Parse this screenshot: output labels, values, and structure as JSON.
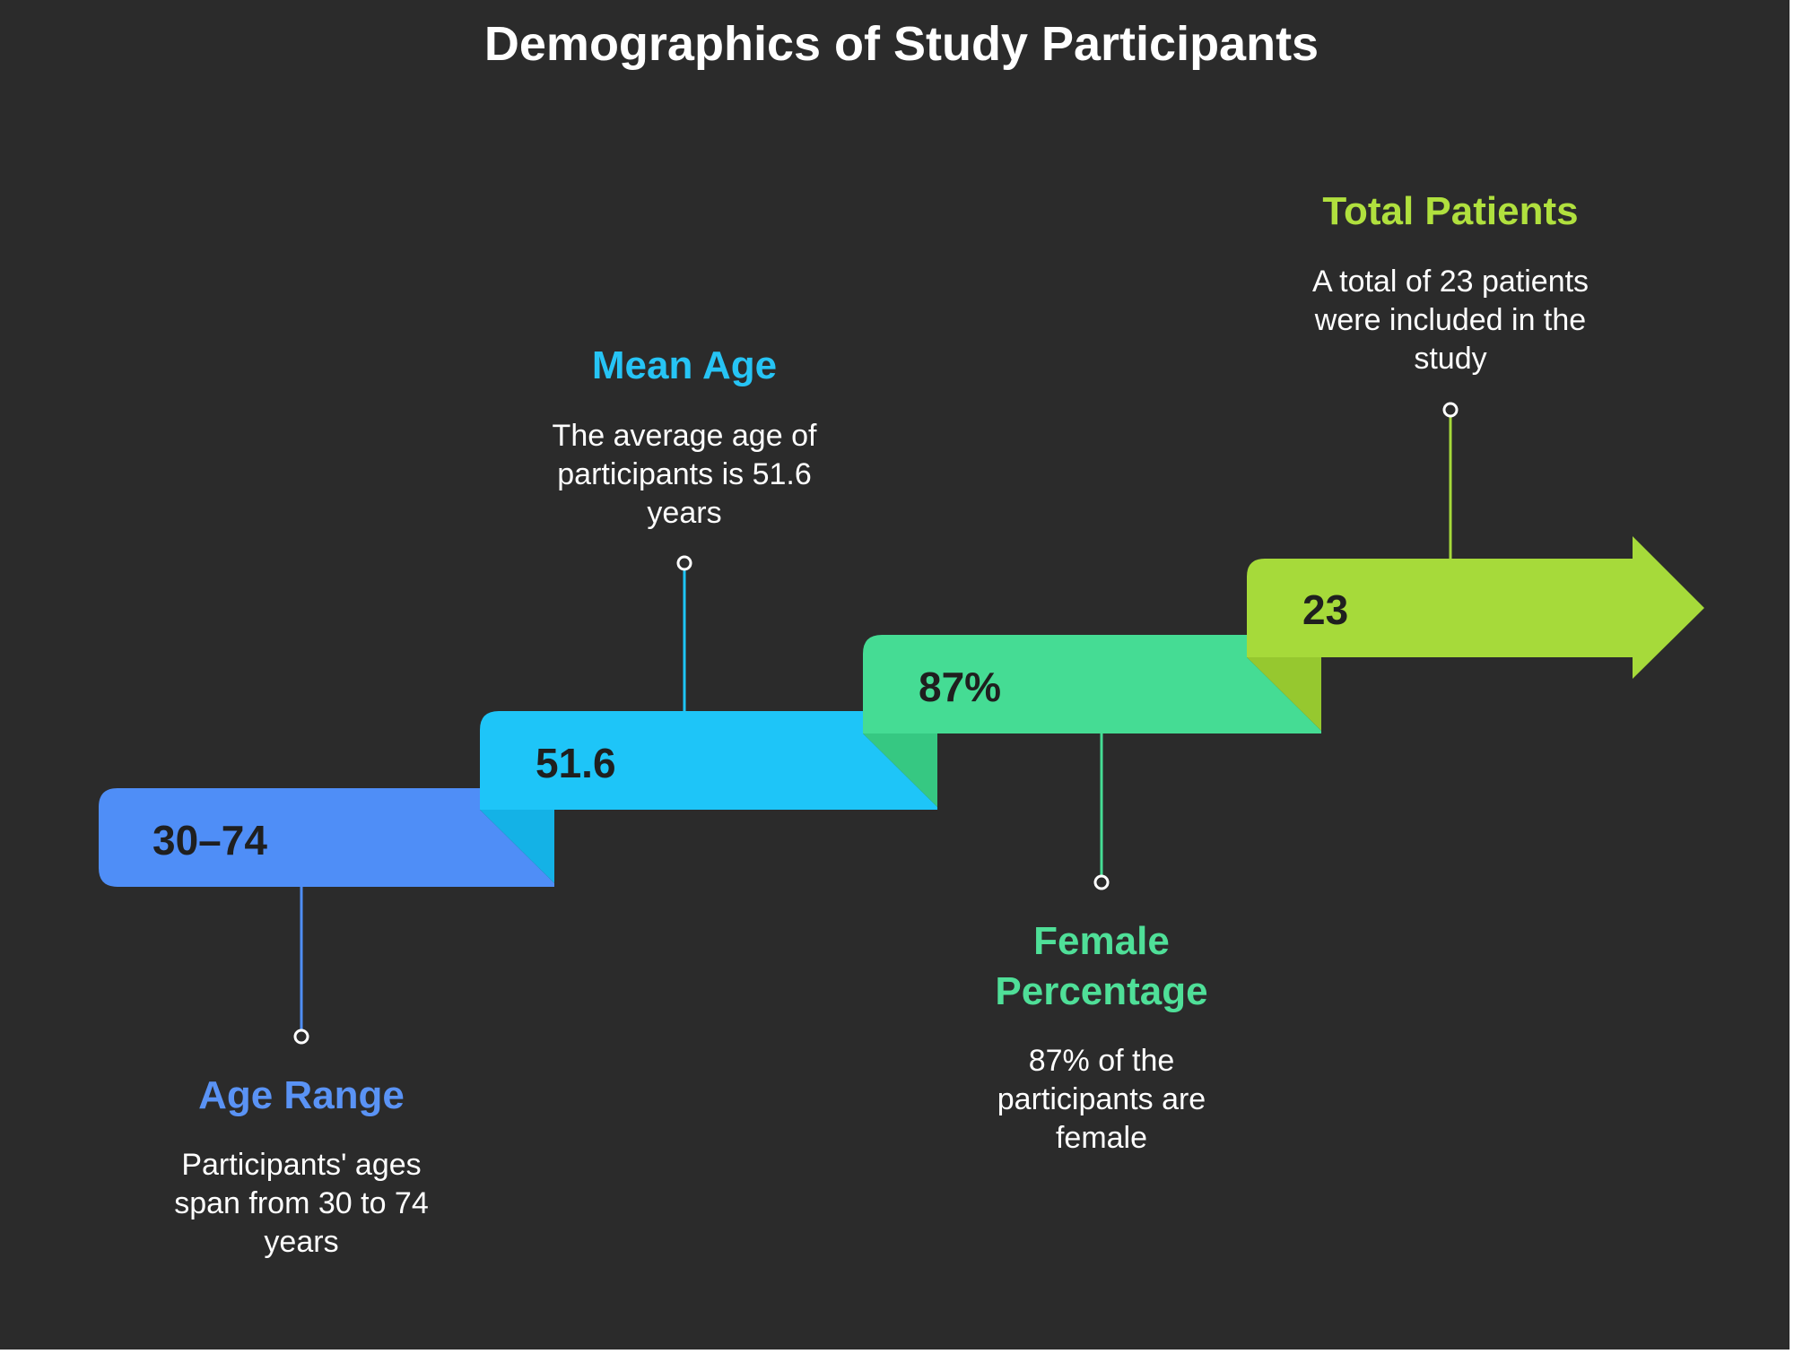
{
  "title": "Demographics of Study Participants",
  "colors": {
    "background": "#2b2b2b",
    "title": "#ffffff",
    "value_text": "#1f1f1f",
    "description_text": "#ffffff"
  },
  "stages": [
    {
      "value": "30–74",
      "heading": "Age Range",
      "description": "Participants' ages span from 30 to 74 years",
      "color": "#4f8ef7",
      "fold_color": "#3f7de6",
      "heading_color": "#5a93f5"
    },
    {
      "value": "51.6",
      "heading": "Mean Age",
      "description": "The average age of participants is 51.6 years",
      "color": "#1ec5f8",
      "fold_color": "#14b2e6",
      "heading_color": "#26c4f5"
    },
    {
      "value": "87%",
      "heading": "Female Percentage",
      "description": "87% of the participants are female",
      "color": "#45dc94",
      "fold_color": "#36c882",
      "heading_color": "#4fdf98"
    },
    {
      "value": "23",
      "heading": "Total Patients",
      "description": "A total of 23 patients were included in the study",
      "color": "#a6da3a",
      "fold_color": "#96c82f",
      "heading_color": "#b0e03e"
    }
  ]
}
